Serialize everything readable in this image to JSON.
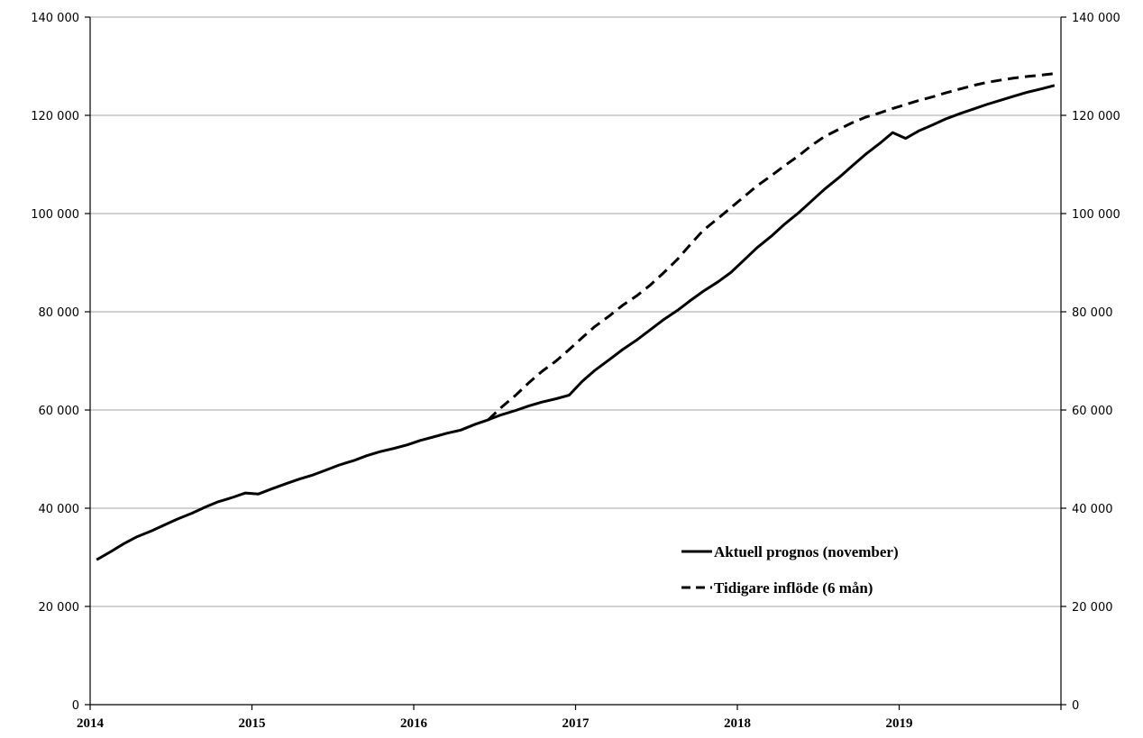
{
  "chart_data": {
    "type": "line",
    "title": "",
    "xlabel": "",
    "ylabel": "",
    "ylim": [
      0,
      140000
    ],
    "y_ticks": [
      0,
      20000,
      40000,
      60000,
      80000,
      100000,
      120000,
      140000
    ],
    "y_tick_labels": [
      "0",
      "20 000",
      "40 000",
      "60 000",
      "80 000",
      "100 000",
      "120 000",
      "140 000"
    ],
    "secondary_y_axis": true,
    "x_tick_labels": [
      "2014",
      "2015",
      "2016",
      "2017",
      "2018",
      "2019"
    ],
    "x_tick_values": [
      2014,
      2015,
      2016,
      2017,
      2018,
      2019
    ],
    "xlim": [
      2014,
      2020
    ],
    "grid": "horizontal",
    "legend_position": "lower-right",
    "series": [
      {
        "name": "Aktuell prognos (november)",
        "style": "solid",
        "color": "#000000",
        "points": [
          [
            2014.04,
            29500
          ],
          [
            2014.12,
            31000
          ],
          [
            2014.21,
            32800
          ],
          [
            2014.29,
            34200
          ],
          [
            2014.38,
            35400
          ],
          [
            2014.46,
            36600
          ],
          [
            2014.54,
            37800
          ],
          [
            2014.63,
            39000
          ],
          [
            2014.71,
            40200
          ],
          [
            2014.79,
            41300
          ],
          [
            2014.88,
            42200
          ],
          [
            2014.96,
            43100
          ],
          [
            2015.04,
            42900
          ],
          [
            2015.12,
            43900
          ],
          [
            2015.21,
            45000
          ],
          [
            2015.29,
            45900
          ],
          [
            2015.38,
            46800
          ],
          [
            2015.46,
            47800
          ],
          [
            2015.54,
            48800
          ],
          [
            2015.63,
            49700
          ],
          [
            2015.71,
            50700
          ],
          [
            2015.79,
            51500
          ],
          [
            2015.88,
            52200
          ],
          [
            2015.96,
            52900
          ],
          [
            2016.04,
            53800
          ],
          [
            2016.12,
            54500
          ],
          [
            2016.21,
            55300
          ],
          [
            2016.29,
            55900
          ],
          [
            2016.38,
            57100
          ],
          [
            2016.46,
            58000
          ],
          [
            2016.54,
            59000
          ],
          [
            2016.63,
            59900
          ],
          [
            2016.71,
            60800
          ],
          [
            2016.79,
            61600
          ],
          [
            2016.88,
            62300
          ],
          [
            2016.96,
            63000
          ],
          [
            2017.04,
            65800
          ],
          [
            2017.12,
            68100
          ],
          [
            2017.21,
            70300
          ],
          [
            2017.29,
            72300
          ],
          [
            2017.38,
            74300
          ],
          [
            2017.46,
            76300
          ],
          [
            2017.54,
            78300
          ],
          [
            2017.63,
            80300
          ],
          [
            2017.71,
            82300
          ],
          [
            2017.79,
            84200
          ],
          [
            2017.88,
            86100
          ],
          [
            2017.96,
            88000
          ],
          [
            2018.04,
            90500
          ],
          [
            2018.12,
            93000
          ],
          [
            2018.21,
            95400
          ],
          [
            2018.29,
            97800
          ],
          [
            2018.38,
            100200
          ],
          [
            2018.46,
            102600
          ],
          [
            2018.54,
            105000
          ],
          [
            2018.63,
            107400
          ],
          [
            2018.71,
            109700
          ],
          [
            2018.79,
            112000
          ],
          [
            2018.88,
            114300
          ],
          [
            2018.96,
            116500
          ],
          [
            2019.04,
            115300
          ],
          [
            2019.12,
            116800
          ],
          [
            2019.21,
            118100
          ],
          [
            2019.29,
            119300
          ],
          [
            2019.38,
            120400
          ],
          [
            2019.46,
            121300
          ],
          [
            2019.54,
            122200
          ],
          [
            2019.63,
            123100
          ],
          [
            2019.71,
            123900
          ],
          [
            2019.79,
            124700
          ],
          [
            2019.88,
            125400
          ],
          [
            2019.96,
            126100
          ]
        ]
      },
      {
        "name": "Tidigare inflöde (6 mån)",
        "style": "dashed",
        "color": "#000000",
        "points": [
          [
            2016.46,
            58000
          ],
          [
            2016.54,
            60500
          ],
          [
            2016.63,
            63000
          ],
          [
            2016.71,
            65500
          ],
          [
            2016.79,
            67800
          ],
          [
            2016.88,
            70000
          ],
          [
            2016.96,
            72300
          ],
          [
            2017.04,
            74700
          ],
          [
            2017.12,
            77000
          ],
          [
            2017.21,
            79200
          ],
          [
            2017.29,
            81300
          ],
          [
            2017.38,
            83300
          ],
          [
            2017.46,
            85400
          ],
          [
            2017.54,
            87800
          ],
          [
            2017.63,
            90700
          ],
          [
            2017.71,
            93700
          ],
          [
            2017.79,
            96600
          ],
          [
            2017.88,
            99000
          ],
          [
            2017.96,
            101200
          ],
          [
            2018.04,
            103400
          ],
          [
            2018.12,
            105600
          ],
          [
            2018.21,
            107700
          ],
          [
            2018.29,
            109700
          ],
          [
            2018.38,
            111800
          ],
          [
            2018.46,
            113900
          ],
          [
            2018.54,
            115700
          ],
          [
            2018.63,
            117200
          ],
          [
            2018.71,
            118500
          ],
          [
            2018.79,
            119600
          ],
          [
            2018.88,
            120500
          ],
          [
            2018.96,
            121400
          ],
          [
            2019.04,
            122200
          ],
          [
            2019.12,
            123000
          ],
          [
            2019.21,
            123800
          ],
          [
            2019.29,
            124600
          ],
          [
            2019.38,
            125400
          ],
          [
            2019.46,
            126100
          ],
          [
            2019.54,
            126700
          ],
          [
            2019.63,
            127200
          ],
          [
            2019.71,
            127600
          ],
          [
            2019.79,
            127900
          ],
          [
            2019.88,
            128200
          ],
          [
            2019.96,
            128500
          ]
        ]
      }
    ]
  }
}
